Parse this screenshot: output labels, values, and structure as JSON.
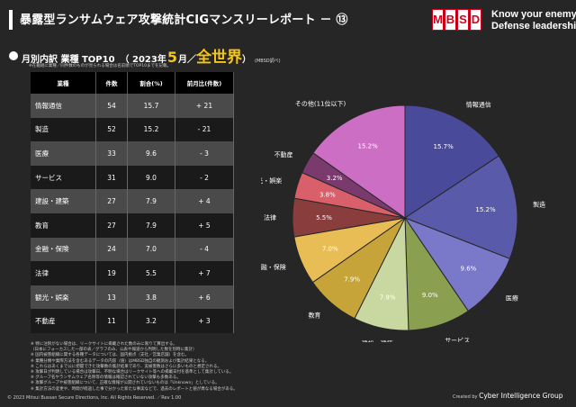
{
  "header": {
    "title": "暴露型ランサムウェア攻撃統計CIGマンスリーレポート － ⑬",
    "logo_letters": [
      "M",
      "B",
      "S",
      "D"
    ],
    "tagline_1": "Know your enemy.",
    "tagline_2": "Defense leadership."
  },
  "subtitle": {
    "text": "月別内訳 業種 TOP10",
    "paren_open": "（ 2023年",
    "month": "5",
    "month_suffix": "月／",
    "region": "全世界",
    "paren_close": "）",
    "note": "(MBSD調べ)"
  },
  "subnote": "※在籍組に業種／同件数のものが見られる場合は名前順でTOP10までを記載。",
  "table": {
    "headers": [
      "業種",
      "件数",
      "割合(%)",
      "前月比(件数)"
    ],
    "rows": [
      [
        "情報通信",
        "54",
        "15.7",
        "+ 21"
      ],
      [
        "製造",
        "52",
        "15.2",
        "- 21"
      ],
      [
        "医療",
        "33",
        "9.6",
        "- 3"
      ],
      [
        "サービス",
        "31",
        "9.0",
        "- 2"
      ],
      [
        "建設・建築",
        "27",
        "7.9",
        "+ 4"
      ],
      [
        "教育",
        "27",
        "7.9",
        "+ 5"
      ],
      [
        "金融・保険",
        "24",
        "7.0",
        "- 4"
      ],
      [
        "法律",
        "19",
        "5.5",
        "+ 7"
      ],
      [
        "観光・娯楽",
        "13",
        "3.8",
        "+ 6"
      ],
      [
        "不動産",
        "11",
        "3.2",
        "+ 3"
      ]
    ]
  },
  "chart_data": {
    "type": "pie",
    "title": "",
    "slices": [
      {
        "label": "情報通信",
        "value": 15.7,
        "color": "#4a4a9a"
      },
      {
        "label": "製造",
        "value": 15.2,
        "color": "#5a5aaa"
      },
      {
        "label": "医療",
        "value": 9.6,
        "color": "#7a78c8"
      },
      {
        "label": "サービス",
        "value": 9.0,
        "color": "#8aa050"
      },
      {
        "label": "建設・建築",
        "value": 7.9,
        "color": "#c9d8a0"
      },
      {
        "label": "教育",
        "value": 7.9,
        "color": "#c7a43a"
      },
      {
        "label": "金融・保険",
        "value": 7.0,
        "color": "#e8bd55"
      },
      {
        "label": "法律",
        "value": 5.5,
        "color": "#8a3d3d"
      },
      {
        "label": "観光・娯楽",
        "value": 3.8,
        "color": "#d9606a"
      },
      {
        "label": "不動産",
        "value": 3.2,
        "color": "#7a3a6e"
      },
      {
        "label": "その他(11位以下)",
        "value": 15.2,
        "color": "#cc6fc4"
      }
    ]
  },
  "footnotes": [
    "※ 特に注釈がない場合は、リークサイトに掲載された数のみに限りて算出する。",
    "（日本にフォーカスした一部の表／グラフのみ、公表や報道から判明した数を別時に集計）",
    "※ 国内被害組織に関する各種データについては、国内拠点（支社／営業店舗）を含む。",
    "※ 業種分類や業際方法を含むあるデータの内容（値）はMBSD独自の観測および集計結果となる。",
    "※ これらはあくまで公に把握できた攻撃数の集計結果であり、実被害数はさらに多いものと想定される。",
    "※ 攻撃日が判明している場合は攻撃日、不明な場合はリークサイト等への掲載日付を基準として集計している。",
    "※ グループ名やランサムウェア名称等の情報は確認されていない攻撃も多数ある。",
    "※ 攻撃グループや被害組織について、正確な情報が公開されていないものは「Unknown」としている。",
    "※ 集計方法の変更や、時間が経過した事で分かった新たな事実などで、過去のレポートと値が異なる場合がある。"
  ],
  "copyright": "© 2023 Mitsui Bussan Secure Directions, Inc. All Rights Reserved. ／Rev 1.00",
  "credit": {
    "prefix": "Created by ",
    "name": "Cyber Intelligence Group"
  }
}
